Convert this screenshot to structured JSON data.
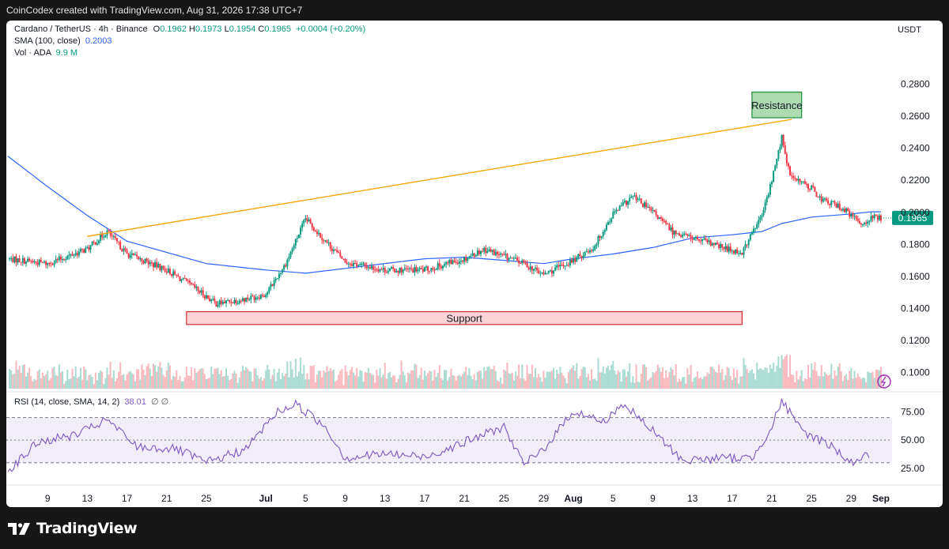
{
  "header": {
    "text": "CoinCodex created with TradingView.com, Aug 31, 2026 17:38 UTC+7"
  },
  "legend": {
    "title": "Cardano / TetherUS · 4h · Binance",
    "o_label": "O",
    "o": "0.1962",
    "h_label": "H",
    "h": "0.1973",
    "l_label": "L",
    "l": "0.1954",
    "c_label": "C",
    "c": "0.1965",
    "change": "+0.0004 (+0.20%)",
    "sma_label": "SMA (100, close)",
    "sma_value": "0.2003",
    "vol_label": "Vol · ADA",
    "vol_value": "9.9 M"
  },
  "currency": "USDT",
  "price_tag": "0.1965",
  "rsi_legend": {
    "label": "RSI (14, close, SMA, 14, 2)",
    "value": "38.01",
    "flags": "∅ ∅"
  },
  "annotations": {
    "resistance": "Resistance",
    "support": "Support"
  },
  "footer": {
    "brand": "TradingView"
  },
  "colors": {
    "up": "#089981",
    "down": "#f23645",
    "sma": "#2962ff",
    "trendline": "#f7a600",
    "rsi": "#7e57c2",
    "resistance_fill": "#4caf50",
    "support_fill": "#f23645"
  },
  "chart_data": [
    {
      "type": "line",
      "title": "Cardano / TetherUS · 4h · Binance",
      "y_axis": {
        "ticks": [
          "0.2800",
          "0.2600",
          "0.2400",
          "0.2200",
          "0.2000",
          "0.1800",
          "0.1600",
          "0.1400",
          "0.1200",
          "0.1000"
        ],
        "range": [
          0.088,
          0.295
        ]
      },
      "x_ticks": [
        "9",
        "13",
        "17",
        "21",
        "25",
        "Jul",
        "5",
        "9",
        "13",
        "17",
        "21",
        "25",
        "29",
        "Aug",
        "5",
        "9",
        "13",
        "17",
        "21",
        "25",
        "29",
        "Sep"
      ],
      "x_range": [
        "Jun 5",
        "Sep 1"
      ],
      "series": [
        {
          "name": "Cardano / TetherUS",
          "x": [
            "Jun 5",
            "Jun 9",
            "Jun 13",
            "Jun 15",
            "Jun 17",
            "Jun 21",
            "Jun 24",
            "Jun 26",
            "Jun 29",
            "Jul 1",
            "Jul 3",
            "Jul 5",
            "Jul 7",
            "Jul 9",
            "Jul 13",
            "Jul 17",
            "Jul 21",
            "Jul 23",
            "Jul 27",
            "Jul 29",
            "Aug 1",
            "Aug 3",
            "Aug 5",
            "Aug 7",
            "Aug 9",
            "Aug 11",
            "Aug 13",
            "Aug 16",
            "Aug 18",
            "Aug 19",
            "Aug 20",
            "Aug 21",
            "Aug 22",
            "Aug 22 12:00",
            "Aug 23",
            "Aug 25",
            "Aug 26",
            "Aug 28",
            "Aug 30",
            "Aug 31"
          ],
          "y": [
            0.171,
            0.168,
            0.177,
            0.188,
            0.174,
            0.164,
            0.152,
            0.143,
            0.146,
            0.149,
            0.168,
            0.196,
            0.182,
            0.169,
            0.164,
            0.164,
            0.171,
            0.177,
            0.168,
            0.161,
            0.17,
            0.178,
            0.199,
            0.21,
            0.2,
            0.188,
            0.184,
            0.178,
            0.175,
            0.187,
            0.198,
            0.22,
            0.247,
            0.23,
            0.222,
            0.215,
            0.208,
            0.203,
            0.193,
            0.1965
          ]
        },
        {
          "name": "SMA (100, close)",
          "x": [
            "Jun 5",
            "Jun 9",
            "Jun 13",
            "Jun 17",
            "Jun 21",
            "Jun 25",
            "Jul 1",
            "Jul 5",
            "Jul 9",
            "Jul 13",
            "Jul 17",
            "Jul 21",
            "Jul 25",
            "Jul 29",
            "Aug 1",
            "Aug 5",
            "Aug 9",
            "Aug 13",
            "Aug 17",
            "Aug 20",
            "Aug 22",
            "Aug 25",
            "Aug 29",
            "Aug 31"
          ],
          "y": [
            0.235,
            0.216,
            0.198,
            0.182,
            0.175,
            0.168,
            0.164,
            0.162,
            0.165,
            0.168,
            0.171,
            0.172,
            0.17,
            0.168,
            0.171,
            0.174,
            0.178,
            0.184,
            0.186,
            0.188,
            0.193,
            0.197,
            0.199,
            0.2003
          ]
        }
      ],
      "trendline": {
        "from": [
          "Jun 13",
          0.185
        ],
        "to": [
          "Aug 23",
          0.258
        ]
      },
      "zones": [
        {
          "label": "Resistance",
          "x": [
            "Aug 19",
            "Aug 24"
          ],
          "y": [
            0.259,
            0.275
          ]
        },
        {
          "label": "Support",
          "x": [
            "Jun 23",
            "Aug 18"
          ],
          "y": [
            0.13,
            0.138
          ]
        }
      ]
    },
    {
      "type": "bar",
      "title": "Vol · ADA",
      "bars_per_day": 6,
      "value_unit": "relative",
      "values_note": "approximate relative volume"
    },
    {
      "type": "line",
      "title": "RSI (14, close, SMA, 14, 2)",
      "y_axis": {
        "ticks": [
          "75.00",
          "50.00",
          "25.00"
        ],
        "range": [
          20,
          90
        ]
      },
      "bands": [
        70,
        50,
        30
      ],
      "series": [
        {
          "name": "RSI",
          "x": [
            "Jun 5",
            "Jun 8",
            "Jun 12",
            "Jun 15",
            "Jun 18",
            "Jun 22",
            "Jun 25",
            "Jun 29",
            "Jul 2",
            "Jul 4",
            "Jul 7",
            "Jul 9",
            "Jul 13",
            "Jul 17",
            "Jul 21",
            "Jul 25",
            "Jul 27",
            "Jul 29",
            "Aug 1",
            "Aug 4",
            "Aug 6",
            "Aug 9",
            "Aug 12",
            "Aug 16",
            "Aug 19",
            "Aug 21",
            "Aug 22",
            "Aug 24",
            "Aug 27",
            "Aug 29",
            "Aug 31"
          ],
          "y": [
            22,
            48,
            55,
            68,
            44,
            42,
            30,
            42,
            74,
            82,
            62,
            34,
            38,
            35,
            48,
            62,
            28,
            42,
            76,
            66,
            82,
            58,
            32,
            34,
            34,
            62,
            85,
            58,
            45,
            30,
            38.01
          ]
        }
      ]
    }
  ]
}
